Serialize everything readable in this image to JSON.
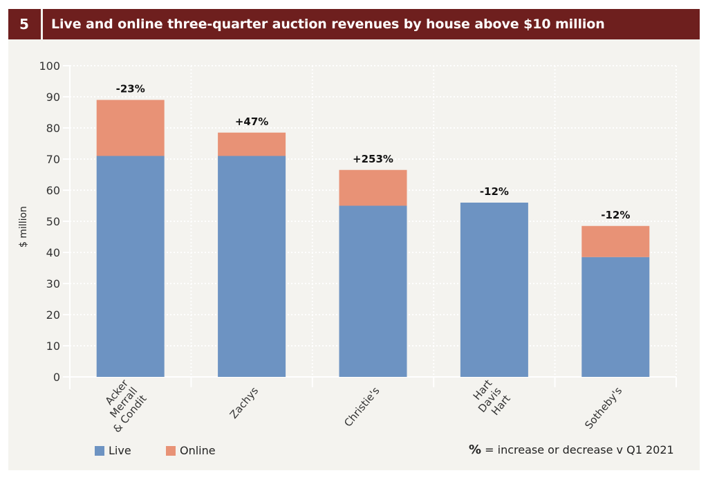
{
  "header": {
    "number": "5",
    "title": "Live and online three-quarter auction revenues by house above $10 million"
  },
  "legend": {
    "items": [
      {
        "label": "Live",
        "color": "#6d93c2"
      },
      {
        "label": "Online",
        "color": "#e89276"
      }
    ],
    "note_symbol": "%",
    "note_text": "= increase or decrease v Q1 2021"
  },
  "chart_data": {
    "type": "bar",
    "stacked": true,
    "title": "Live and online three-quarter auction revenues by house above $10 million",
    "xlabel": "",
    "ylabel": "$ million",
    "ylim": [
      0,
      100
    ],
    "yticks": [
      0,
      10,
      20,
      30,
      40,
      50,
      60,
      70,
      80,
      90,
      100
    ],
    "grid": true,
    "legend_position": "bottom-left",
    "categories": [
      [
        "Acker",
        "Merrall",
        "& Condit"
      ],
      [
        "Zachys"
      ],
      [
        "Christie's"
      ],
      [
        "Hart",
        "Davis",
        "Hart"
      ],
      [
        "Sotheby's"
      ]
    ],
    "series": [
      {
        "name": "Live",
        "color": "#6d93c2",
        "values": [
          71,
          71,
          55,
          56,
          38.5
        ]
      },
      {
        "name": "Online",
        "color": "#e89276",
        "values": [
          18,
          7.5,
          11.5,
          0,
          10
        ]
      }
    ],
    "annotations": [
      "-23%",
      "+47%",
      "+253%",
      "-12%",
      "-12%"
    ],
    "annotation_note": "% = increase or decrease v Q1 2021"
  }
}
